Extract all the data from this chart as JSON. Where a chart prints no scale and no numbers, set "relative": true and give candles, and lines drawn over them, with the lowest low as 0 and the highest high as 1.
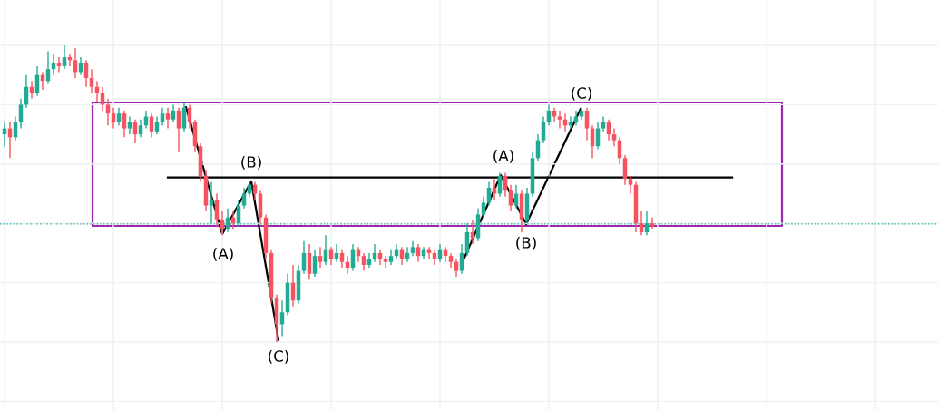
{
  "chart_data": {
    "type": "candlestick",
    "relative": true,
    "tick_labels": false,
    "grid": true,
    "categories": [
      null,
      null,
      null,
      null,
      null,
      null,
      null,
      null,
      null,
      null,
      null,
      null,
      null,
      null,
      null,
      null,
      null,
      null,
      null,
      null,
      null,
      null,
      null,
      null,
      null,
      null,
      null,
      null,
      null,
      null,
      null,
      null,
      null,
      null,
      null,
      null,
      null,
      null,
      null,
      null,
      null,
      null,
      null,
      null,
      null,
      null,
      null,
      null,
      null,
      null,
      null,
      null,
      null,
      null,
      null,
      null,
      null,
      null,
      null,
      null,
      null,
      null,
      null,
      null,
      null,
      null,
      null,
      null,
      null,
      null,
      null,
      null,
      null,
      null,
      null,
      null,
      null,
      null,
      null,
      null,
      null,
      null,
      null,
      null,
      null,
      null,
      null,
      null,
      null,
      null,
      null,
      null,
      null,
      null,
      null,
      null,
      null,
      null,
      null,
      null,
      null,
      null,
      null,
      null,
      null,
      null,
      null,
      null,
      null,
      null,
      null,
      null,
      null,
      null,
      null,
      null,
      null,
      null,
      null,
      null
    ],
    "colors": [
      "#22ab94",
      "#f7525f",
      "#22ab94",
      "#22ab94",
      "#22ab94",
      "#f7525f",
      "#22ab94",
      "#f7525f",
      "#22ab94",
      "#22ab94",
      "#f7525f",
      "#22ab94",
      "#f7525f",
      "#f7525f",
      "#22ab94",
      "#f7525f",
      "#f7525f",
      "#f7525f",
      "#f7525f",
      "#f7525f",
      "#f7525f",
      "#22ab94",
      "#f7525f",
      "#22ab94",
      "#f7525f",
      "#22ab94",
      "#22ab94",
      "#f7525f",
      "#22ab94",
      "#22ab94",
      "#f7525f",
      "#22ab94",
      "#f7525f",
      "#22ab94",
      "#f7525f",
      "#f7525f",
      "#f7525f",
      "#f7525f",
      "#22ab94",
      "#f7525f",
      "#f7525f",
      "#22ab94",
      "#f7525f",
      "#22ab94",
      "#22ab94",
      "#22ab94",
      "#f7525f",
      "#f7525f",
      "#f7525f",
      "#f7525f",
      "#f7525f",
      "#22ab94",
      "#22ab94",
      "#f7525f",
      "#22ab94",
      "#22ab94",
      "#f7525f",
      "#22ab94",
      "#f7525f",
      "#22ab94",
      "#f7525f",
      "#22ab94",
      "#f7525f",
      "#f7525f",
      "#22ab94",
      "#f7525f",
      "#f7525f",
      "#22ab94",
      "#22ab94",
      "#f7525f",
      "#f7525f",
      "#22ab94",
      "#22ab94",
      "#f7525f",
      "#22ab94",
      "#22ab94",
      "#f7525f",
      "#22ab94",
      "#f7525f",
      "#f7525f",
      "#22ab94",
      "#f7525f",
      "#f7525f",
      "#f7525f",
      "#22ab94",
      "#22ab94",
      "#f7525f",
      "#22ab94",
      "#22ab94",
      "#22ab94",
      "#f7525f",
      "#22ab94",
      "#f7525f",
      "#f7525f",
      "#22ab94",
      "#f7525f",
      "#22ab94",
      "#22ab94",
      "#22ab94",
      "#22ab94",
      "#22ab94",
      "#f7525f",
      "#f7525f",
      "#f7525f",
      "#22ab94",
      "#22ab94",
      "#22ab94",
      "#f7525f",
      "#f7525f",
      "#22ab94",
      "#22ab94",
      "#f7525f",
      "#f7525f",
      "#f7525f",
      "#f7525f",
      "#f7525f",
      "#f7525f",
      "#f7525f",
      "#22ab94",
      "#f7525f"
    ],
    "ohlc": [
      [
        0.7,
        0.74,
        0.66,
        0.72
      ],
      [
        0.72,
        0.74,
        0.62,
        0.69
      ],
      [
        0.69,
        0.76,
        0.68,
        0.74
      ],
      [
        0.74,
        0.82,
        0.72,
        0.8
      ],
      [
        0.8,
        0.9,
        0.79,
        0.86
      ],
      [
        0.86,
        0.88,
        0.82,
        0.84
      ],
      [
        0.84,
        0.93,
        0.83,
        0.9
      ],
      [
        0.9,
        0.91,
        0.85,
        0.88
      ],
      [
        0.88,
        0.98,
        0.87,
        0.92
      ],
      [
        0.92,
        0.97,
        0.9,
        0.94
      ],
      [
        0.94,
        0.96,
        0.91,
        0.93
      ],
      [
        0.93,
        1.0,
        0.92,
        0.96
      ],
      [
        0.96,
        0.97,
        0.93,
        0.95
      ],
      [
        0.95,
        0.99,
        0.89,
        0.91
      ],
      [
        0.91,
        0.96,
        0.9,
        0.94
      ],
      [
        0.94,
        0.95,
        0.86,
        0.89
      ],
      [
        0.89,
        0.92,
        0.84,
        0.86
      ],
      [
        0.86,
        0.88,
        0.81,
        0.84
      ],
      [
        0.84,
        0.86,
        0.78,
        0.8
      ],
      [
        0.8,
        0.82,
        0.73,
        0.77
      ],
      [
        0.77,
        0.79,
        0.72,
        0.74
      ],
      [
        0.74,
        0.79,
        0.73,
        0.77
      ],
      [
        0.77,
        0.78,
        0.69,
        0.72
      ],
      [
        0.72,
        0.76,
        0.7,
        0.74
      ],
      [
        0.74,
        0.75,
        0.67,
        0.7
      ],
      [
        0.7,
        0.75,
        0.69,
        0.73
      ],
      [
        0.73,
        0.78,
        0.72,
        0.76
      ],
      [
        0.76,
        0.77,
        0.69,
        0.71
      ],
      [
        0.71,
        0.76,
        0.7,
        0.74
      ],
      [
        0.74,
        0.79,
        0.73,
        0.77
      ],
      [
        0.77,
        0.79,
        0.72,
        0.75
      ],
      [
        0.75,
        0.8,
        0.74,
        0.78
      ],
      [
        0.78,
        0.79,
        0.64,
        0.72
      ],
      [
        0.72,
        0.81,
        0.71,
        0.79
      ],
      [
        0.79,
        0.8,
        0.72,
        0.74
      ],
      [
        0.74,
        0.75,
        0.64,
        0.66
      ],
      [
        0.66,
        0.67,
        0.54,
        0.56
      ],
      [
        0.56,
        0.58,
        0.44,
        0.46
      ],
      [
        0.46,
        0.54,
        0.4,
        0.48
      ],
      [
        0.48,
        0.5,
        0.39,
        0.41
      ],
      [
        0.41,
        0.44,
        0.36,
        0.38
      ],
      [
        0.38,
        0.45,
        0.37,
        0.42
      ],
      [
        0.42,
        0.44,
        0.38,
        0.4
      ],
      [
        0.4,
        0.48,
        0.39,
        0.46
      ],
      [
        0.46,
        0.52,
        0.45,
        0.5
      ],
      [
        0.5,
        0.54,
        0.49,
        0.53
      ],
      [
        0.53,
        0.54,
        0.48,
        0.5
      ],
      [
        0.5,
        0.51,
        0.4,
        0.42
      ],
      [
        0.42,
        0.43,
        0.28,
        0.3
      ],
      [
        0.3,
        0.31,
        0.13,
        0.15
      ],
      [
        0.15,
        0.16,
        0.0,
        0.06
      ],
      [
        0.06,
        0.14,
        0.02,
        0.1
      ],
      [
        0.1,
        0.23,
        0.09,
        0.2
      ],
      [
        0.2,
        0.26,
        0.12,
        0.14
      ],
      [
        0.14,
        0.26,
        0.13,
        0.24
      ],
      [
        0.24,
        0.34,
        0.23,
        0.3
      ],
      [
        0.3,
        0.33,
        0.21,
        0.23
      ],
      [
        0.23,
        0.31,
        0.22,
        0.29
      ],
      [
        0.29,
        0.32,
        0.25,
        0.27
      ],
      [
        0.27,
        0.36,
        0.26,
        0.31
      ],
      [
        0.31,
        0.32,
        0.26,
        0.28
      ],
      [
        0.28,
        0.33,
        0.27,
        0.3
      ],
      [
        0.3,
        0.31,
        0.25,
        0.27
      ],
      [
        0.27,
        0.29,
        0.23,
        0.25
      ],
      [
        0.25,
        0.33,
        0.24,
        0.31
      ],
      [
        0.31,
        0.32,
        0.27,
        0.29
      ],
      [
        0.29,
        0.3,
        0.24,
        0.26
      ],
      [
        0.26,
        0.3,
        0.25,
        0.28
      ],
      [
        0.28,
        0.33,
        0.27,
        0.3
      ],
      [
        0.3,
        0.31,
        0.26,
        0.28
      ],
      [
        0.28,
        0.29,
        0.25,
        0.27
      ],
      [
        0.27,
        0.31,
        0.26,
        0.29
      ],
      [
        0.29,
        0.33,
        0.28,
        0.31
      ],
      [
        0.31,
        0.32,
        0.26,
        0.28
      ],
      [
        0.28,
        0.32,
        0.27,
        0.3
      ],
      [
        0.3,
        0.34,
        0.29,
        0.32
      ],
      [
        0.32,
        0.33,
        0.27,
        0.29
      ],
      [
        0.29,
        0.32,
        0.28,
        0.31
      ],
      [
        0.31,
        0.32,
        0.28,
        0.3
      ],
      [
        0.3,
        0.31,
        0.26,
        0.28
      ],
      [
        0.28,
        0.33,
        0.27,
        0.31
      ],
      [
        0.31,
        0.32,
        0.27,
        0.29
      ],
      [
        0.29,
        0.3,
        0.25,
        0.27
      ],
      [
        0.27,
        0.28,
        0.22,
        0.24
      ],
      [
        0.24,
        0.33,
        0.23,
        0.3
      ],
      [
        0.3,
        0.4,
        0.29,
        0.37
      ],
      [
        0.37,
        0.41,
        0.33,
        0.35
      ],
      [
        0.35,
        0.45,
        0.34,
        0.43
      ],
      [
        0.43,
        0.49,
        0.42,
        0.47
      ],
      [
        0.47,
        0.54,
        0.46,
        0.52
      ],
      [
        0.52,
        0.55,
        0.48,
        0.5
      ],
      [
        0.5,
        0.57,
        0.49,
        0.56
      ],
      [
        0.56,
        0.57,
        0.49,
        0.51
      ],
      [
        0.51,
        0.53,
        0.44,
        0.46
      ],
      [
        0.46,
        0.53,
        0.45,
        0.5
      ],
      [
        0.5,
        0.51,
        0.37,
        0.41
      ],
      [
        0.41,
        0.52,
        0.4,
        0.5
      ],
      [
        0.5,
        0.64,
        0.49,
        0.62
      ],
      [
        0.62,
        0.7,
        0.61,
        0.68
      ],
      [
        0.68,
        0.76,
        0.67,
        0.74
      ],
      [
        0.74,
        0.8,
        0.73,
        0.78
      ],
      [
        0.78,
        0.79,
        0.74,
        0.76
      ],
      [
        0.76,
        0.78,
        0.72,
        0.75
      ],
      [
        0.75,
        0.77,
        0.71,
        0.73
      ],
      [
        0.73,
        0.76,
        0.72,
        0.74
      ],
      [
        0.74,
        0.78,
        0.73,
        0.76
      ],
      [
        0.76,
        0.79,
        0.75,
        0.78
      ],
      [
        0.78,
        0.79,
        0.68,
        0.72
      ],
      [
        0.72,
        0.73,
        0.62,
        0.66
      ],
      [
        0.66,
        0.74,
        0.65,
        0.72
      ],
      [
        0.72,
        0.76,
        0.71,
        0.74
      ],
      [
        0.74,
        0.75,
        0.68,
        0.7
      ],
      [
        0.7,
        0.72,
        0.66,
        0.68
      ],
      [
        0.68,
        0.69,
        0.6,
        0.62
      ],
      [
        0.62,
        0.63,
        0.53,
        0.55
      ],
      [
        0.55,
        0.56,
        0.5,
        0.53
      ],
      [
        0.53,
        0.54,
        0.37,
        0.4
      ],
      [
        0.4,
        0.44,
        0.36,
        0.37
      ],
      [
        0.37,
        0.44,
        0.36,
        0.4
      ],
      [
        0.4,
        0.42,
        0.38,
        0.39
      ]
    ],
    "ref_lines": [
      {
        "axis": "y",
        "value": 0.398,
        "color": "#22ab94",
        "line_style": "dotted"
      },
      {
        "axis": "y",
        "value": 0.555,
        "color": "#000000",
        "line_style": "solid"
      }
    ],
    "annotations": [
      "(A)",
      "(B)",
      "(C)",
      "(A)",
      "(B)",
      "(C)"
    ]
  }
}
